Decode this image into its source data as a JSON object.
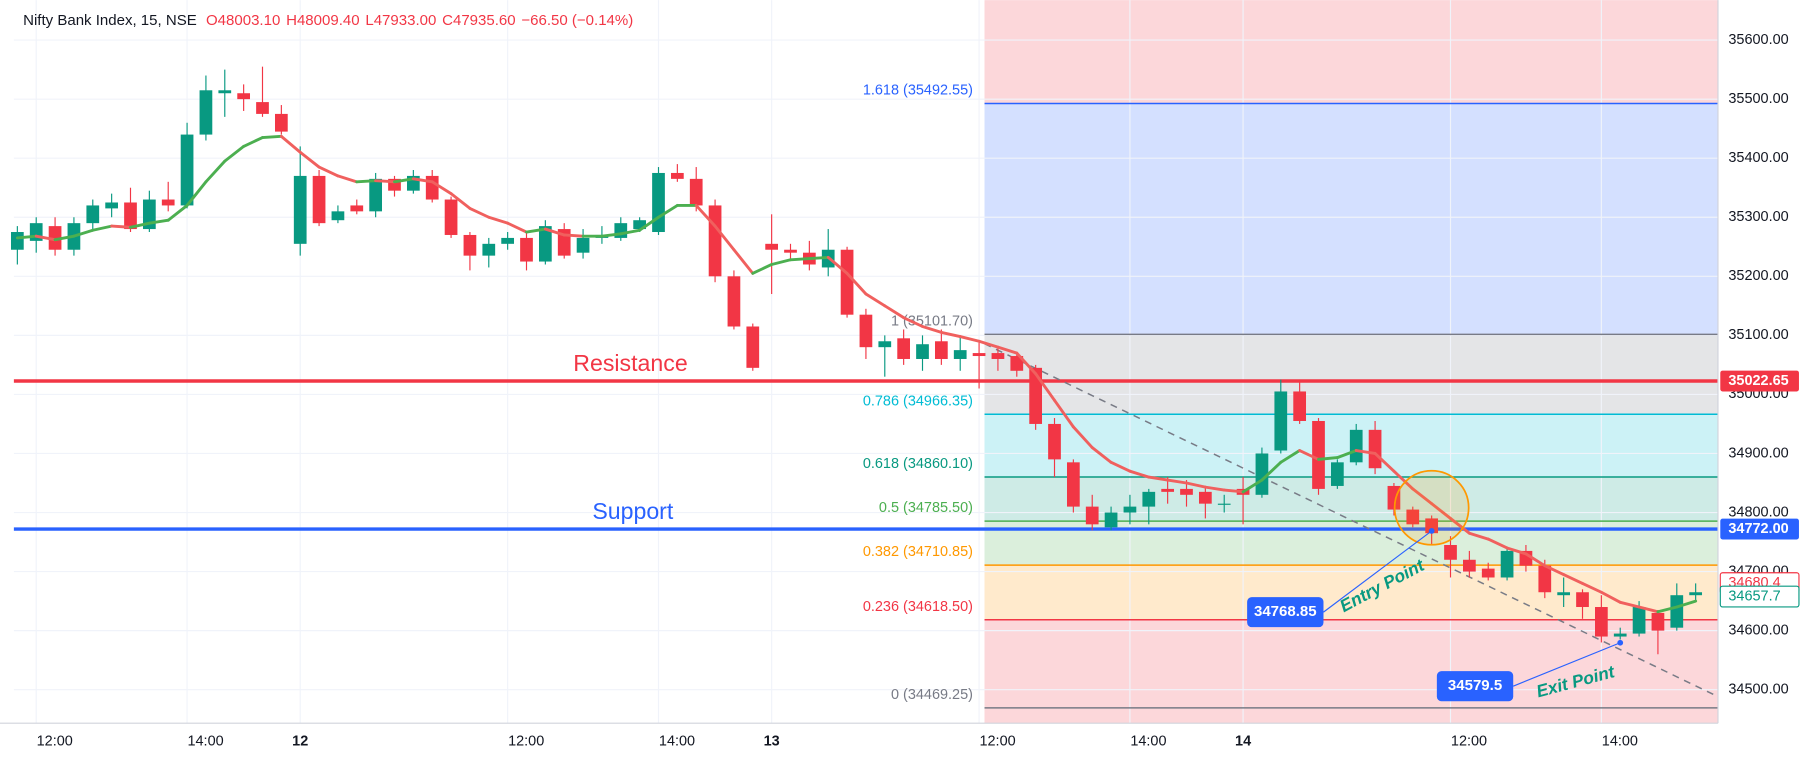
{
  "chart_data": {
    "type": "candlestick",
    "title": "Nifty Bank Index, 15, NSE",
    "legend_values": [
      "O48003.10",
      "H48009.40",
      "L47933.00",
      "C47935.60",
      "−66.50 (−0.14%)"
    ],
    "categories": [
      null,
      "12:00",
      null,
      null,
      null,
      null,
      null,
      null,
      null,
      "14:00",
      null,
      null,
      null,
      null,
      null,
      "12",
      null,
      null,
      null,
      null,
      null,
      null,
      null,
      null,
      null,
      null,
      "12:00",
      null,
      null,
      null,
      null,
      null,
      null,
      null,
      "14:00",
      null,
      null,
      null,
      null,
      null,
      "13",
      null,
      null,
      null,
      null,
      null,
      null,
      null,
      null,
      null,
      null,
      "12:00",
      null,
      null,
      null,
      null,
      null,
      null,
      null,
      "14:00",
      null,
      null,
      null,
      null,
      null,
      "14",
      null,
      null,
      null,
      null,
      null,
      null,
      null,
      null,
      null,
      null,
      "12:00",
      null,
      null,
      null,
      null,
      null,
      null,
      null,
      "14:00",
      null,
      null,
      null,
      null,
      null
    ],
    "open": [
      35245,
      35260,
      35285,
      35245,
      35290,
      35315,
      35325,
      35280,
      35330,
      35320,
      35440,
      35510,
      35510,
      35495,
      35475,
      35255,
      35370,
      35295,
      35320,
      35310,
      35365,
      35345,
      35370,
      35330,
      35270,
      35235,
      35255,
      35265,
      35225,
      35280,
      35240,
      35265,
      35265,
      35280,
      35275,
      35375,
      35365,
      35320,
      35200,
      35115,
      35255,
      35245,
      35240,
      35215,
      35245,
      35135,
      35080,
      35095,
      35060,
      35090,
      35060,
      35070,
      35070,
      35065,
      35045,
      34950,
      34885,
      34810,
      34775,
      34800,
      34810,
      34840,
      34840,
      34835,
      34815,
      34840,
      34830,
      34905,
      35005,
      34955,
      34845,
      34885,
      34940,
      34845,
      34805,
      34790,
      34745,
      34720,
      34705,
      34690,
      34735,
      34710,
      34660,
      34665,
      34640,
      34590,
      34595,
      34630,
      34605,
      34660
    ],
    "high": [
      35285,
      35300,
      35300,
      35300,
      35330,
      35340,
      35350,
      35345,
      35360,
      35460,
      35540,
      35550,
      35525,
      35555,
      35490,
      35420,
      35380,
      35320,
      35330,
      35375,
      35370,
      35380,
      35380,
      35335,
      35275,
      35265,
      35275,
      35275,
      35295,
      35290,
      35280,
      35285,
      35300,
      35300,
      35385,
      35390,
      35385,
      35330,
      35210,
      35120,
      35305,
      35255,
      35260,
      35280,
      35250,
      35145,
      35100,
      35110,
      35100,
      35110,
      35100,
      35090,
      35080,
      35070,
      35050,
      34960,
      34890,
      34830,
      34810,
      34830,
      34840,
      34860,
      34855,
      34845,
      34830,
      34860,
      34910,
      35025,
      35025,
      34960,
      34890,
      34950,
      34955,
      34850,
      34810,
      34795,
      34760,
      34735,
      34715,
      34740,
      34745,
      34720,
      34690,
      34670,
      34660,
      34605,
      34650,
      34635,
      34680,
      34680
    ],
    "low": [
      35220,
      35240,
      35235,
      35235,
      35280,
      35300,
      35275,
      35275,
      35310,
      35315,
      35430,
      35470,
      35480,
      35470,
      35440,
      35235,
      35285,
      35290,
      35305,
      35300,
      35335,
      35340,
      35325,
      35265,
      35210,
      35215,
      35245,
      35210,
      35220,
      35230,
      35230,
      35255,
      35260,
      35275,
      35270,
      35360,
      35310,
      35190,
      35110,
      35040,
      35170,
      35230,
      35210,
      35200,
      35130,
      35060,
      35030,
      35050,
      35040,
      35050,
      35040,
      35010,
      35040,
      35030,
      34940,
      34860,
      34800,
      34770,
      34770,
      34780,
      34780,
      34815,
      34810,
      34790,
      34800,
      34780,
      34825,
      34900,
      34950,
      34830,
      34840,
      34880,
      34865,
      34795,
      34775,
      34745,
      34690,
      34690,
      34685,
      34685,
      34700,
      34655,
      34640,
      34620,
      34580,
      34585,
      34590,
      34560,
      34600,
      34650
    ],
    "close": [
      35275,
      35290,
      35245,
      35290,
      35320,
      35325,
      35280,
      35330,
      35320,
      35440,
      35515,
      35515,
      35500,
      35475,
      35445,
      35370,
      35290,
      35310,
      35310,
      35365,
      35345,
      35370,
      35330,
      35270,
      35235,
      35255,
      35265,
      35225,
      35285,
      35235,
      35265,
      35270,
      35290,
      35295,
      35375,
      35365,
      35320,
      35200,
      35115,
      35045,
      35245,
      35240,
      35220,
      35245,
      35135,
      35080,
      35090,
      35060,
      35085,
      35060,
      35075,
      35065,
      35060,
      35040,
      34950,
      34890,
      34810,
      34780,
      34800,
      34810,
      34835,
      34835,
      34830,
      34815,
      34815,
      34830,
      34900,
      35005,
      34955,
      34840,
      34885,
      34940,
      34875,
      34805,
      34780,
      34765,
      34720,
      34700,
      34690,
      34735,
      34710,
      34665,
      34665,
      34640,
      34590,
      34595,
      34640,
      34600,
      34660,
      34665
    ],
    "ema": [
      35265,
      35268,
      35262,
      35268,
      35278,
      35285,
      35283,
      35290,
      35295,
      35320,
      35360,
      35395,
      35420,
      35435,
      35437,
      35410,
      35385,
      35370,
      35360,
      35362,
      35360,
      35365,
      35360,
      35340,
      35315,
      35300,
      35290,
      35275,
      35280,
      35270,
      35268,
      35268,
      35272,
      35278,
      35300,
      35320,
      35320,
      35285,
      35245,
      35205,
      35220,
      35228,
      35230,
      35232,
      35205,
      35170,
      35150,
      35130,
      35115,
      35105,
      35098,
      35090,
      35080,
      35070,
      35035,
      34990,
      34945,
      34910,
      34885,
      34870,
      34860,
      34855,
      34850,
      34843,
      34838,
      34835,
      34855,
      34885,
      34905,
      34890,
      34893,
      34905,
      34900,
      34870,
      34840,
      34815,
      34790,
      34765,
      34755,
      34740,
      34730,
      34710,
      34695,
      34680,
      34665,
      34648,
      34640,
      34632,
      34640,
      34650
    ],
    "up_color": "#089981",
    "down_color": "#f23645",
    "ema_up_color": "#4caf50",
    "ema_down_color": "#f0605e",
    "ylim": [
      34455,
      35650
    ],
    "yticks": [
      {
        "value": 34500,
        "label": "34500.00"
      },
      {
        "value": 34600,
        "label": "34600.00"
      },
      {
        "value": 34700,
        "label": "34700.00"
      },
      {
        "value": 34800,
        "label": "34800.00"
      },
      {
        "value": 34900,
        "label": "34900.00"
      },
      {
        "value": 35000,
        "label": "35000.00"
      },
      {
        "value": 35100,
        "label": "35100.00"
      },
      {
        "value": 35200,
        "label": "35200.00"
      },
      {
        "value": 35300,
        "label": "35300.00"
      },
      {
        "value": 35400,
        "label": "35400.00"
      },
      {
        "value": 35500,
        "label": "35500.00"
      },
      {
        "value": 35600,
        "label": "35600.00"
      }
    ],
    "grid": true,
    "fib_levels": [
      {
        "value": 35492.55,
        "label": "1.618 (35492.55)",
        "color": "#2962ff"
      },
      {
        "value": 35101.7,
        "label": "1 (35101.70)",
        "color": "#787b86"
      },
      {
        "value": 34966.35,
        "label": "0.786 (34966.35)",
        "color": "#00bcd4"
      },
      {
        "value": 34860.1,
        "label": "0.618 (34860.10)",
        "color": "#089981"
      },
      {
        "value": 34785.5,
        "label": "0.5 (34785.50)",
        "color": "#4caf50"
      },
      {
        "value": 34710.85,
        "label": "0.382 (34710.85)",
        "color": "#ff9800"
      },
      {
        "value": 34618.5,
        "label": "0.236 (34618.50)",
        "color": "#f23645"
      },
      {
        "value": 34469.25,
        "label": "0 (34469.25)",
        "color": "#787b86"
      }
    ],
    "resistance": {
      "name": "Resistance",
      "value": 35022.65,
      "color": "#f23645"
    },
    "support": {
      "name": "Support",
      "value": {
        "value": 34772,
        "label": "34772.00"
      },
      "color": "#2962ff"
    },
    "price_tags": [
      {
        "value": 34680.4,
        "color": "#f23645"
      },
      {
        "value": 34657.7,
        "color": "#089981"
      }
    ],
    "annotations": [
      {
        "value": 34768.85,
        "text": "Entry Point",
        "at": 75
      },
      {
        "value": 34579.5,
        "text": "Exit Point",
        "at": 85
      }
    ]
  }
}
